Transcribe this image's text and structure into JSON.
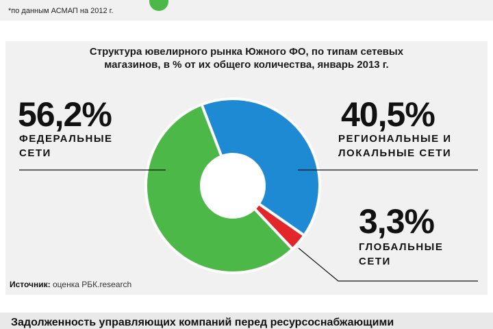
{
  "top_note": "*по данным АСМАП на 2012 г.",
  "chart_data": {
    "type": "pie",
    "title_lines": [
      "Структура ювелирного рынка Южного ФО, по типам сетевых",
      "магазинов, в % от их общего количества, январь 2013 г."
    ],
    "slices": [
      {
        "value": 40.5,
        "value_label": "40,5%",
        "label_lines": [
          "РЕГИОНАЛЬНЫЕ И",
          "ЛОКАЛЬНЫЕ СЕТИ"
        ],
        "color": "#1f8ad4"
      },
      {
        "value": 3.3,
        "value_label": "3,3%",
        "label_lines": [
          "ГЛОБАЛЬНЫЕ",
          "СЕТИ"
        ],
        "color": "#e3262a"
      },
      {
        "value": 56.2,
        "value_label": "56,2%",
        "label_lines": [
          "ФЕДЕРАЛЬНЫЕ",
          "СЕТИ"
        ],
        "color": "#4cb848"
      }
    ]
  },
  "source": {
    "prefix": "Источник:",
    "text": "оценка РБК.research"
  },
  "bottom_title": "Задолженность управляющих компаний перед ресурсоснабжающими"
}
